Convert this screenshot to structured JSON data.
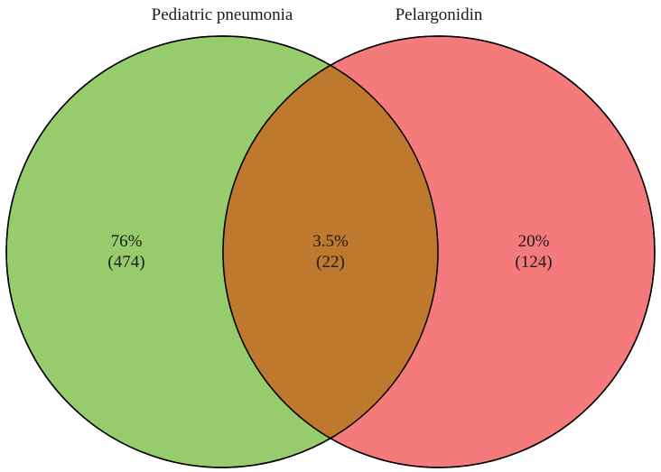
{
  "sets": [
    {
      "name": "Pediatric pneumonia",
      "color": "#97cc6c"
    },
    {
      "name": "Pelargonidin",
      "color": "#f47a7b"
    }
  ],
  "overlap_color": "#bf792e",
  "regions": {
    "left_only": {
      "percent": "76%",
      "count": "(474)"
    },
    "both": {
      "percent": "3.5%",
      "count": "(22)"
    },
    "right_only": {
      "percent": "20%",
      "count": "(124)"
    }
  }
}
